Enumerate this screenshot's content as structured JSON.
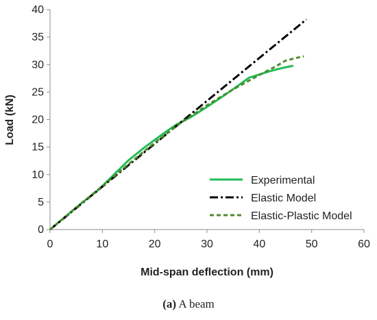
{
  "caption": {
    "label": "(a)",
    "text": "A beam"
  },
  "chart_data": {
    "type": "line",
    "title": "",
    "xlabel": "Mid-span deflection (mm)",
    "ylabel": "Load (kN)",
    "xlim": [
      0,
      60
    ],
    "ylim": [
      0,
      40
    ],
    "xticks": [
      0,
      10,
      20,
      30,
      40,
      50,
      60
    ],
    "yticks": [
      0,
      5,
      10,
      15,
      20,
      25,
      30,
      35,
      40
    ],
    "grid": false,
    "legend_position": "bottom-right",
    "series": [
      {
        "name": "Experimental",
        "color": "#22bb55",
        "dash": "solid",
        "points": [
          [
            0,
            0
          ],
          [
            3,
            2.4
          ],
          [
            6,
            4.8
          ],
          [
            9,
            7.0
          ],
          [
            12,
            9.8
          ],
          [
            15,
            12.6
          ],
          [
            18,
            14.9
          ],
          [
            21,
            17.0
          ],
          [
            24,
            19.0
          ],
          [
            27,
            20.5
          ],
          [
            30,
            22.3
          ],
          [
            33,
            24.2
          ],
          [
            36,
            26.2
          ],
          [
            38,
            27.6
          ],
          [
            40,
            28.2
          ],
          [
            42,
            28.8
          ],
          [
            44,
            29.3
          ],
          [
            46.5,
            29.8
          ]
        ]
      },
      {
        "name": "Elastic Model",
        "color": "#000000",
        "dash": "dashdot",
        "points": [
          [
            0,
            0
          ],
          [
            5,
            3.9
          ],
          [
            10,
            7.8
          ],
          [
            15,
            11.7
          ],
          [
            20,
            15.6
          ],
          [
            25,
            19.5
          ],
          [
            30,
            23.4
          ],
          [
            35,
            27.3
          ],
          [
            40,
            31.2
          ],
          [
            45,
            35.1
          ],
          [
            49,
            38.2
          ]
        ]
      },
      {
        "name": "Elastic-Plastic Model",
        "color": "#4e8a2e",
        "dash": "dashed",
        "points": [
          [
            0,
            0
          ],
          [
            5,
            4.0
          ],
          [
            10,
            7.9
          ],
          [
            15,
            11.9
          ],
          [
            20,
            15.8
          ],
          [
            25,
            19.4
          ],
          [
            30,
            22.6
          ],
          [
            35,
            25.5
          ],
          [
            40,
            28.1
          ],
          [
            43,
            29.6
          ],
          [
            45,
            30.7
          ],
          [
            47,
            31.2
          ],
          [
            48.5,
            31.5
          ]
        ]
      }
    ]
  }
}
